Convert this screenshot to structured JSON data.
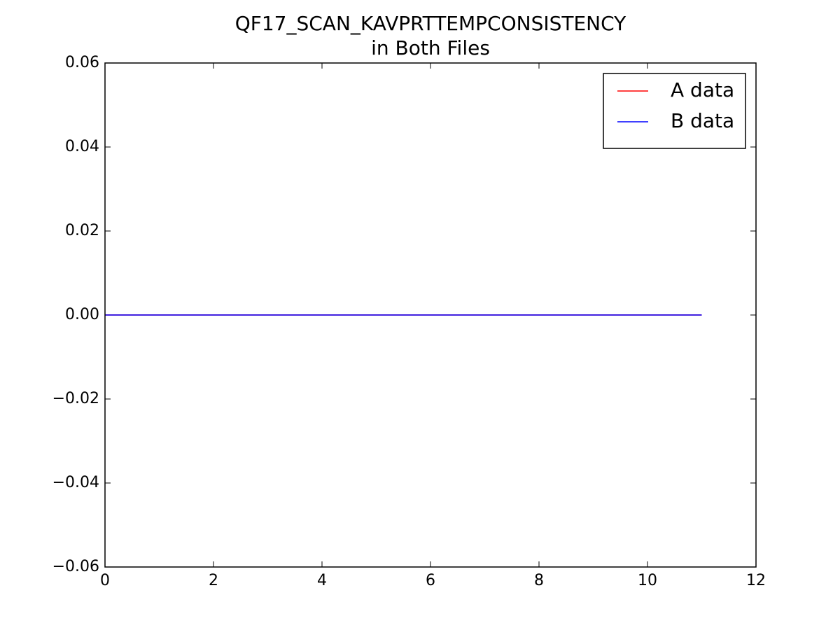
{
  "chart_data": {
    "type": "line",
    "title": "QF17_SCAN_KAVPRTTEMPCONSISTENCY",
    "subtitle": "in Both Files",
    "x": [
      0,
      1,
      2,
      3,
      4,
      5,
      6,
      7,
      8,
      9,
      10,
      11
    ],
    "series": [
      {
        "name": "A data",
        "color": "#ff0000",
        "values": [
          0,
          0,
          0,
          0,
          0,
          0,
          0,
          0,
          0,
          0,
          0,
          0
        ]
      },
      {
        "name": "B data",
        "color": "#0000ff",
        "values": [
          0,
          0,
          0,
          0,
          0,
          0,
          0,
          0,
          0,
          0,
          0,
          0
        ]
      }
    ],
    "xlim": [
      0,
      12
    ],
    "xticks": [
      0,
      2,
      4,
      6,
      8,
      10,
      12
    ],
    "ylim": [
      -0.06,
      0.06
    ],
    "yticks": [
      {
        "value": -0.06,
        "label": "−0.06"
      },
      {
        "value": -0.04,
        "label": "−0.04"
      },
      {
        "value": -0.02,
        "label": "−0.02"
      },
      {
        "value": 0,
        "label": "0.00"
      },
      0.02,
      0.04,
      0.06
    ],
    "legend": "upper right",
    "grid": false
  }
}
